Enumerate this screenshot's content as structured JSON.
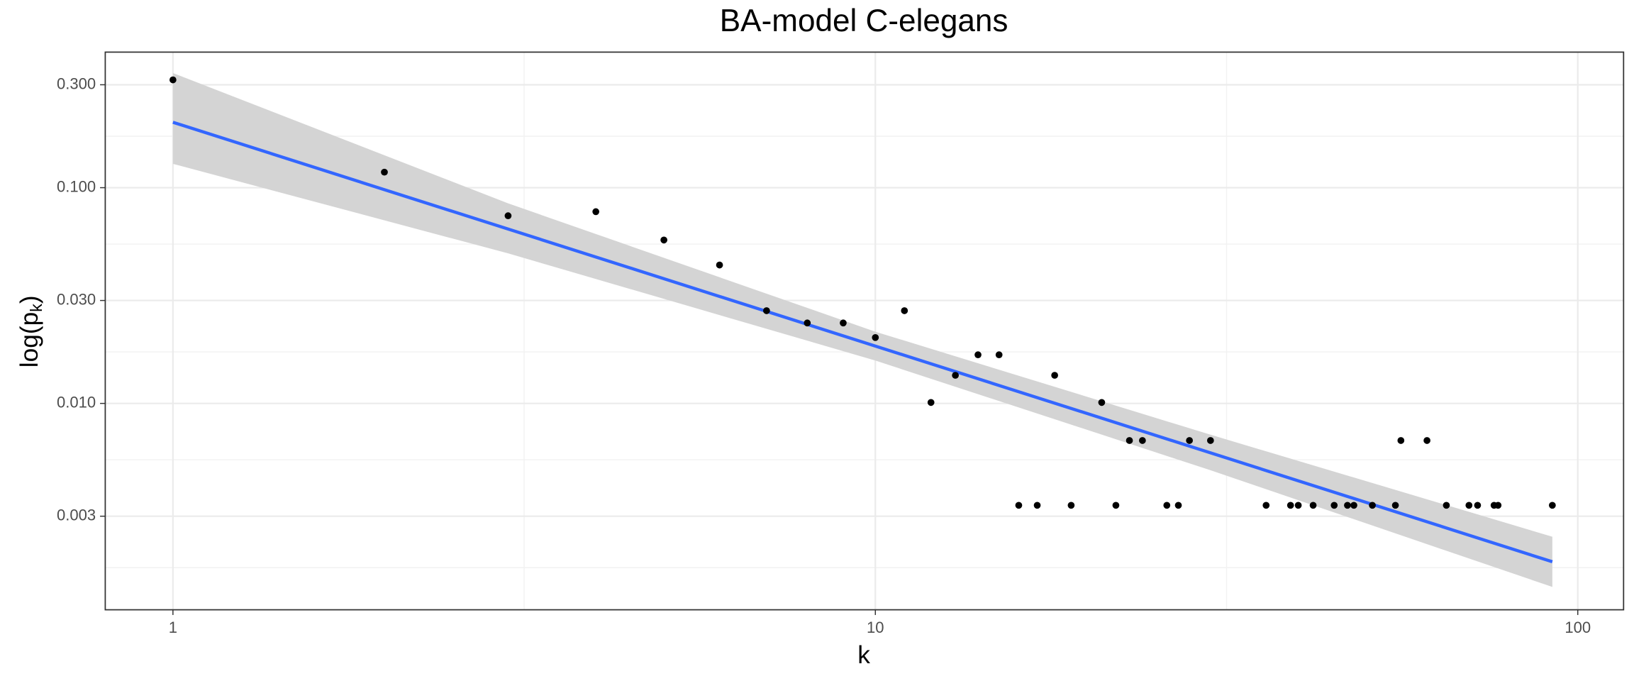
{
  "chart_data": {
    "type": "scatter",
    "title": "BA-model C-elegans",
    "xlabel": "k",
    "ylabel_parts": [
      "log(p",
      "k",
      ")"
    ],
    "log_x": true,
    "log_y": true,
    "grid": true,
    "color": "#000000",
    "x": [
      1,
      2,
      3,
      4,
      5,
      6,
      7,
      8,
      9,
      10,
      11,
      12,
      13,
      14,
      15,
      16,
      17,
      18,
      19,
      21,
      22,
      23,
      24,
      26,
      27,
      28,
      30,
      36,
      39,
      40,
      42,
      45,
      47,
      48,
      51,
      55,
      56,
      61,
      65,
      70,
      72,
      76,
      77,
      92
    ],
    "values": [
      0.316,
      0.118,
      0.0741,
      0.0774,
      0.0572,
      0.0438,
      0.0269,
      0.0236,
      0.0236,
      0.0202,
      0.0269,
      0.0101,
      0.0135,
      0.0168,
      0.0168,
      0.00337,
      0.00337,
      0.0135,
      0.00337,
      0.0101,
      0.00337,
      0.00673,
      0.00673,
      0.00337,
      0.00337,
      0.00673,
      0.00673,
      0.00337,
      0.00337,
      0.00337,
      0.00337,
      0.00337,
      0.00337,
      0.00337,
      0.00337,
      0.00337,
      0.00673,
      0.00673,
      0.00337,
      0.00337,
      0.00337,
      0.00337,
      0.00337,
      0.00337
    ],
    "fit": {
      "color": "#3366ff",
      "x": [
        1,
        92
      ],
      "values": [
        0.201,
        0.001845
      ]
    },
    "band": {
      "color": "#d4d4d4",
      "x": [
        1,
        3,
        10,
        30,
        92
      ],
      "upper": [
        0.34,
        0.0846,
        0.0215,
        0.00716,
        0.00241
      ],
      "lower": [
        0.129,
        0.0496,
        0.0158,
        0.0049,
        0.00141
      ]
    },
    "xlim": [
      0.801,
      116.2
    ],
    "ylim": [
      0.001105,
      0.425
    ],
    "xticks": [
      1,
      10,
      100
    ],
    "xminor": [
      3.162,
      31.62
    ],
    "yticks": [
      {
        "value": 0.3,
        "label": "0.300"
      },
      {
        "value": 0.1,
        "label": "0.100"
      },
      {
        "value": 0.03,
        "label": "0.030"
      },
      {
        "value": 0.01,
        "label": "0.010"
      },
      {
        "value": 0.003,
        "label": "0.003"
      }
    ],
    "yminor": [
      0.1732,
      0.05477,
      0.01732,
      0.005477,
      0.001732
    ]
  }
}
